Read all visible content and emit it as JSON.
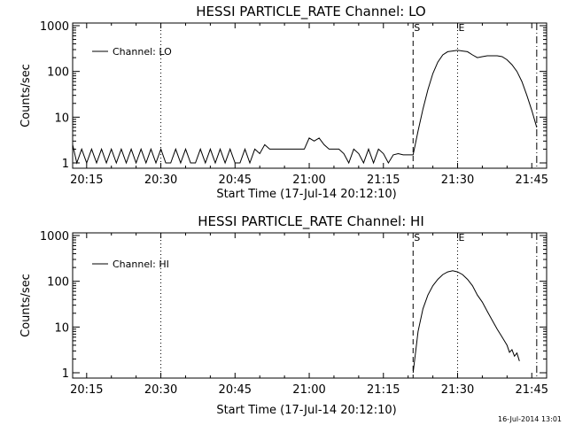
{
  "footer_timestamp": "16-Jul-2014 13:01",
  "colors": {
    "background": "#ffffff",
    "foreground": "#000000"
  },
  "chart_data": [
    {
      "type": "line",
      "title": "HESSI PARTICLE_RATE Channel: LO",
      "xlabel": "Start Time (17-Jul-14 20:12:10)",
      "ylabel": "Counts/sec",
      "yscale": "log",
      "ylim": [
        1,
        1000
      ],
      "xlim": [
        "20:12:10",
        "21:48:00"
      ],
      "x_ticks": [
        "20:15",
        "20:30",
        "20:45",
        "21:00",
        "21:15",
        "21:30",
        "21:45"
      ],
      "y_ticks": [
        "1",
        "10",
        "100",
        "1000"
      ],
      "legend": {
        "label": "Channel: LO",
        "placement": "top-left"
      },
      "markers": [
        {
          "time": "20:30",
          "style": "dotted",
          "label": ""
        },
        {
          "time": "21:21",
          "style": "dashed",
          "label": "S"
        },
        {
          "time": "21:30",
          "style": "dotted",
          "label": "E"
        },
        {
          "time": "21:46",
          "style": "dash-dot",
          "label": ""
        }
      ],
      "series": [
        {
          "name": "Channel: LO",
          "x": [
            "20:12:10",
            "20:13",
            "20:14",
            "20:15",
            "20:16",
            "20:17",
            "20:18",
            "20:19",
            "20:20",
            "20:21",
            "20:22",
            "20:23",
            "20:24",
            "20:25",
            "20:26",
            "20:27",
            "20:28",
            "20:29",
            "20:30",
            "20:31",
            "20:32",
            "20:33",
            "20:34",
            "20:35",
            "20:36",
            "20:37",
            "20:38",
            "20:39",
            "20:40",
            "20:41",
            "20:42",
            "20:43",
            "20:44",
            "20:45",
            "20:46",
            "20:47",
            "20:48",
            "20:49",
            "20:50",
            "20:51",
            "20:52",
            "20:53",
            "20:54",
            "20:55",
            "20:56",
            "20:57",
            "20:58",
            "20:59",
            "21:00",
            "21:01",
            "21:02",
            "21:03",
            "21:04",
            "21:05",
            "21:06",
            "21:07",
            "21:08",
            "21:09",
            "21:10",
            "21:11",
            "21:12",
            "21:13",
            "21:14",
            "21:15",
            "21:16",
            "21:17",
            "21:18",
            "21:19",
            "21:20",
            "21:21",
            "21:22",
            "21:23",
            "21:24",
            "21:25",
            "21:26",
            "21:27",
            "21:28",
            "21:29",
            "21:30",
            "21:31",
            "21:32",
            "21:33",
            "21:34",
            "21:35",
            "21:36",
            "21:37",
            "21:38",
            "21:39",
            "21:40",
            "21:41",
            "21:42",
            "21:43",
            "21:44",
            "21:45",
            "21:46"
          ],
          "y": [
            2.5,
            1,
            2,
            1,
            2,
            1,
            2,
            1,
            2,
            1,
            2,
            1,
            2,
            1,
            2,
            1,
            2,
            1,
            2,
            1,
            1,
            2,
            1,
            2,
            1,
            1,
            2,
            1,
            2,
            1,
            2,
            1,
            2,
            1,
            1,
            2,
            1,
            2,
            1.6,
            2.5,
            2,
            2,
            2,
            2,
            2,
            2,
            2,
            2,
            3.5,
            3,
            3.5,
            2.5,
            2,
            2,
            2,
            1.6,
            1,
            2,
            1.6,
            1,
            2,
            1,
            2,
            1.6,
            1,
            1.5,
            1.6,
            1.5,
            1.5,
            1.5,
            5,
            15,
            40,
            90,
            160,
            230,
            270,
            280,
            290,
            280,
            270,
            230,
            200,
            210,
            220,
            220,
            220,
            210,
            180,
            140,
            100,
            60,
            30,
            14,
            6
          ]
        }
      ]
    },
    {
      "type": "line",
      "title": "HESSI PARTICLE_RATE Channel: HI",
      "xlabel": "Start Time (17-Jul-14 20:12:10)",
      "ylabel": "Counts/sec",
      "yscale": "log",
      "ylim": [
        1,
        1000
      ],
      "xlim": [
        "20:12:10",
        "21:48:00"
      ],
      "x_ticks": [
        "20:15",
        "20:30",
        "20:45",
        "21:00",
        "21:15",
        "21:30",
        "21:45"
      ],
      "y_ticks": [
        "1",
        "10",
        "100",
        "1000"
      ],
      "legend": {
        "label": "Channel: HI",
        "placement": "top-left"
      },
      "markers": [
        {
          "time": "20:30",
          "style": "dotted",
          "label": ""
        },
        {
          "time": "21:21",
          "style": "dashed",
          "label": "S"
        },
        {
          "time": "21:30",
          "style": "dotted",
          "label": "E"
        },
        {
          "time": "21:46",
          "style": "dash-dot",
          "label": ""
        }
      ],
      "series": [
        {
          "name": "Channel: HI",
          "x": [
            "21:21",
            "21:22",
            "21:23",
            "21:24",
            "21:25",
            "21:26",
            "21:27",
            "21:28",
            "21:29",
            "21:30",
            "21:31",
            "21:32",
            "21:33",
            "21:34",
            "21:35",
            "21:36",
            "21:37",
            "21:38",
            "21:39",
            "21:40",
            "21:40:30",
            "21:41",
            "21:41:30",
            "21:42",
            "21:42:30"
          ],
          "y": [
            1,
            8,
            25,
            50,
            80,
            110,
            140,
            160,
            170,
            160,
            140,
            110,
            80,
            50,
            35,
            22,
            14,
            9,
            6,
            4,
            2.8,
            3.2,
            2.3,
            2.7,
            1.8
          ]
        }
      ]
    }
  ]
}
